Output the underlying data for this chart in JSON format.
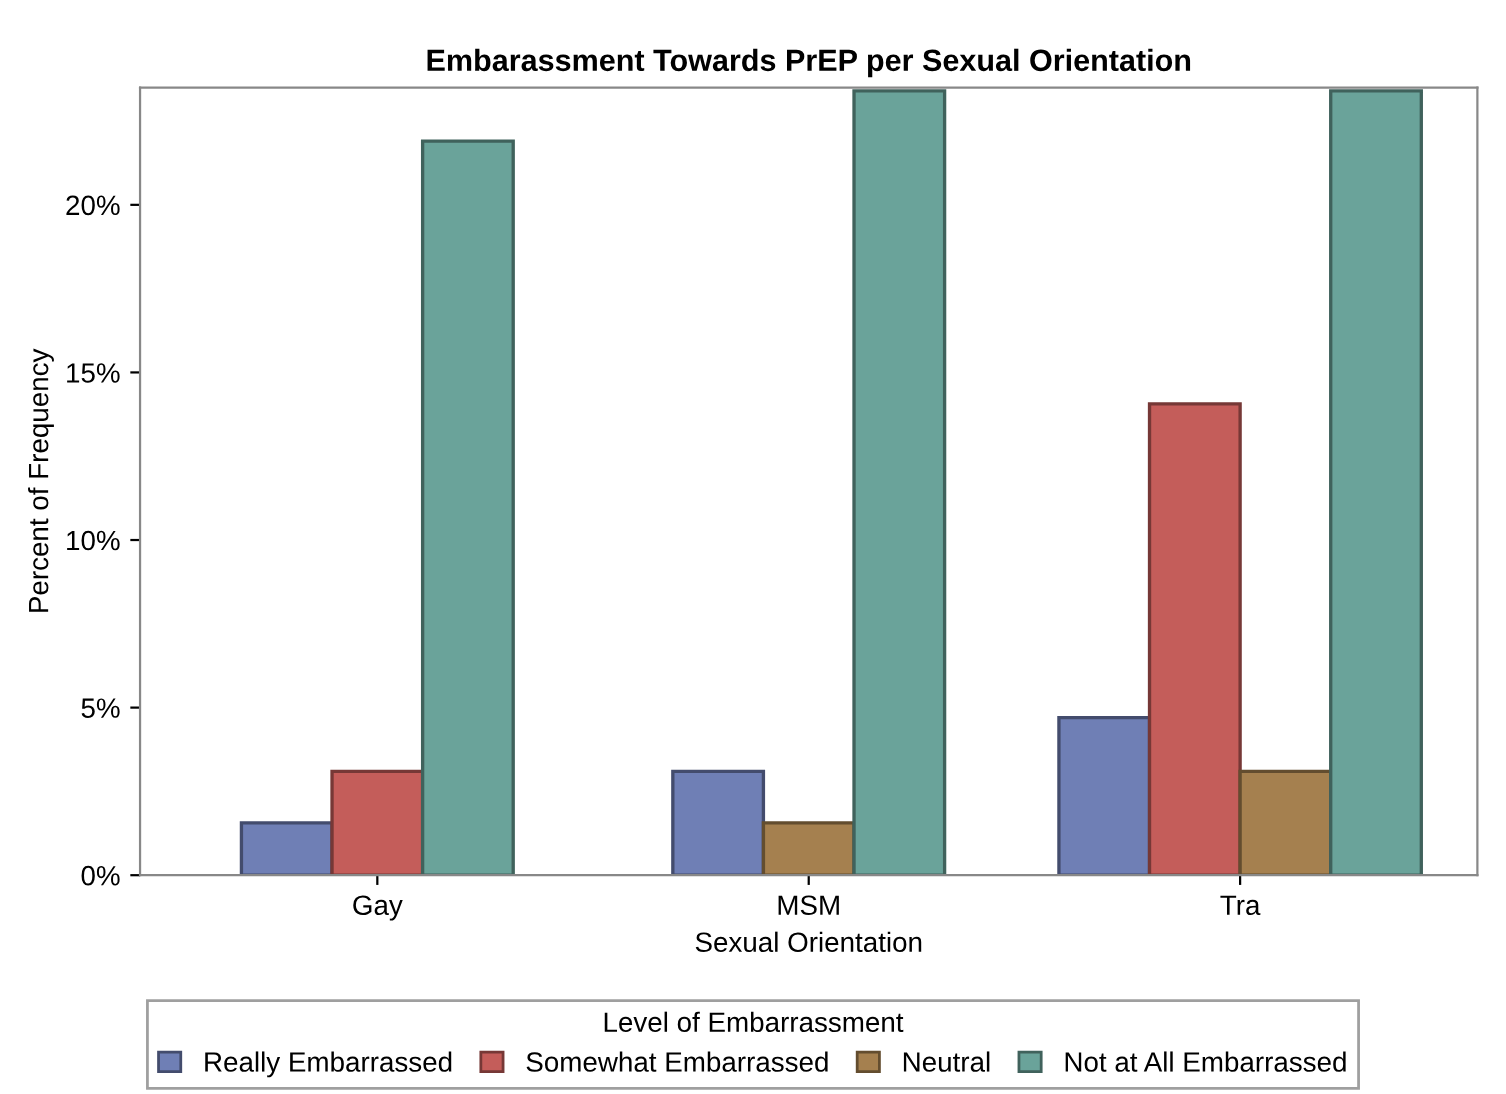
{
  "chart_data": {
    "type": "bar",
    "title": "Embarassment Towards PrEP per Sexual Orientation",
    "xlabel": "Sexual Orientation",
    "ylabel": "Percent of Frequency",
    "legend_title": "Level of Embarrassment",
    "categories": [
      "Gay",
      "MSM",
      "Tra"
    ],
    "series": [
      {
        "name": "Really Embarrassed",
        "color": "#6f7fb5",
        "values": [
          1.56,
          3.1,
          4.7
        ]
      },
      {
        "name": "Somewhat Embarrassed",
        "color": "#c45d5a",
        "values": [
          3.1,
          null,
          14.06
        ]
      },
      {
        "name": "Neutral",
        "color": "#a5804f",
        "values": [
          null,
          1.56,
          3.1
        ]
      },
      {
        "name": "Not at All Embarrassed",
        "color": "#6aa39a",
        "values": [
          21.9,
          23.4,
          23.4
        ]
      }
    ],
    "ylim": [
      0,
      23.5
    ],
    "yticks": [
      {
        "value": 0,
        "label": "0%"
      },
      {
        "value": 5,
        "label": "5%"
      },
      {
        "value": 10,
        "label": "10%"
      },
      {
        "value": 15,
        "label": "15%"
      },
      {
        "value": 20,
        "label": "20%"
      }
    ],
    "grid": false,
    "legend": "bottom"
  }
}
